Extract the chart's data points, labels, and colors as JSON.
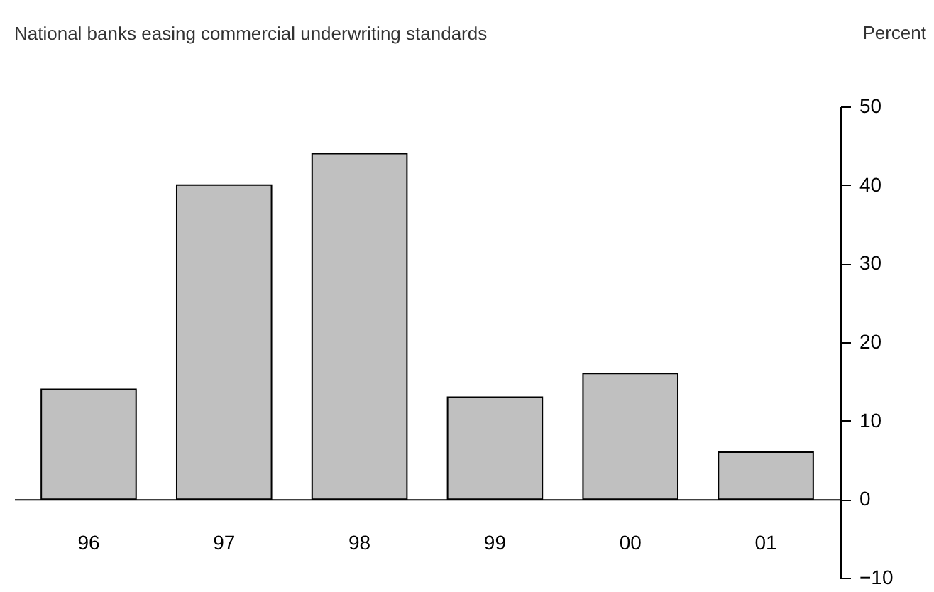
{
  "chart_data": {
    "type": "bar",
    "title": "National banks easing commercial underwriting standards",
    "ylabel": "Percent",
    "categories": [
      "96",
      "97",
      "98",
      "99",
      "00",
      "01"
    ],
    "values": [
      14,
      40,
      44,
      13,
      16,
      6
    ],
    "color": "#c0c0c0",
    "ylim": [
      -10,
      50
    ],
    "yticks": [
      -10,
      0,
      10,
      20,
      30,
      40,
      50
    ],
    "grid": false
  }
}
